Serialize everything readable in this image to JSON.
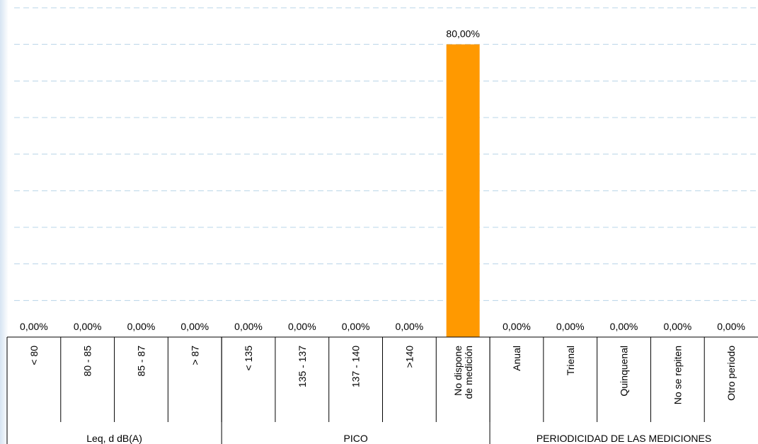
{
  "chart_data": {
    "type": "bar",
    "categories": [
      "< 80",
      "80 - 85",
      "85 - 87",
      "> 87",
      "< 135",
      "135 - 137",
      "137 - 140",
      ">140",
      "No dispone de medición",
      "Anual",
      "Trienal",
      "Quinquenal",
      "No se repiten",
      "Otro periodo"
    ],
    "values": [
      0,
      0,
      0,
      0,
      0,
      0,
      0,
      0,
      80,
      0,
      0,
      0,
      0,
      0
    ],
    "value_labels": [
      "0,00%",
      "0,00%",
      "0,00%",
      "0,00%",
      "0,00%",
      "0,00%",
      "0,00%",
      "0,00%",
      "80,00%",
      "0,00%",
      "0,00%",
      "0,00%",
      "0,00%",
      "0,00%"
    ],
    "groups": [
      {
        "name": "Leq, d dB(A)",
        "count": 4
      },
      {
        "name": "PICO",
        "count": 5
      },
      {
        "name": "PERIODICIDAD DE LAS MEDICIONES",
        "count": 5
      }
    ],
    "color": "#ff9900",
    "ylim": [
      0,
      90
    ],
    "yticks": [
      10,
      20,
      30,
      40,
      50,
      60,
      70,
      80,
      90
    ],
    "grid": true
  }
}
